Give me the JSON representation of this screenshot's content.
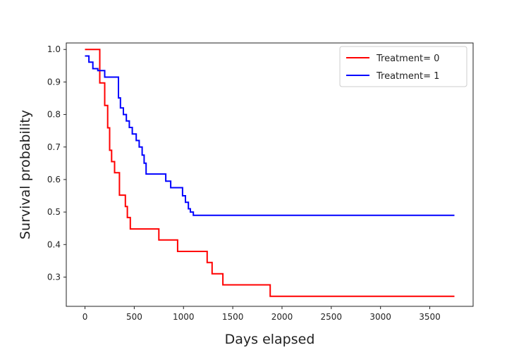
{
  "chart_data": {
    "type": "line",
    "step": true,
    "xlabel": "Days elapsed",
    "ylabel": "Survival probability",
    "xlim": [
      -190,
      3940
    ],
    "ylim": [
      0.21,
      1.02
    ],
    "xticks": [
      0,
      500,
      1000,
      1500,
      2000,
      2500,
      3000,
      3500
    ],
    "yticks": [
      0.3,
      0.4,
      0.5,
      0.6,
      0.7,
      0.8,
      0.9,
      1.0
    ],
    "ytick_labels": [
      "0.3",
      "0.4",
      "0.5",
      "0.6",
      "0.7",
      "0.8",
      "0.9",
      "1.0"
    ],
    "grid": false,
    "legend_position": "top-right",
    "series": [
      {
        "name": "Treatment= 0",
        "color": "#ff0000",
        "x": [
          0,
          150,
          200,
          230,
          250,
          270,
          300,
          350,
          410,
          430,
          460,
          750,
          940,
          1240,
          1290,
          1330,
          1400,
          1880,
          3750
        ],
        "y": [
          1.0,
          0.897,
          0.828,
          0.759,
          0.69,
          0.655,
          0.621,
          0.552,
          0.517,
          0.483,
          0.448,
          0.414,
          0.379,
          0.345,
          0.31,
          0.31,
          0.276,
          0.241,
          0.241
        ]
      },
      {
        "name": "Treatment= 1",
        "color": "#0000ff",
        "x": [
          0,
          40,
          80,
          130,
          200,
          340,
          360,
          390,
          420,
          450,
          480,
          520,
          550,
          580,
          600,
          620,
          820,
          870,
          990,
          1020,
          1050,
          1070,
          1100,
          3750
        ],
        "y": [
          0.98,
          0.961,
          0.941,
          0.935,
          0.915,
          0.851,
          0.82,
          0.8,
          0.78,
          0.76,
          0.74,
          0.72,
          0.7,
          0.675,
          0.65,
          0.617,
          0.595,
          0.575,
          0.55,
          0.53,
          0.51,
          0.5,
          0.49,
          0.49
        ]
      }
    ]
  }
}
